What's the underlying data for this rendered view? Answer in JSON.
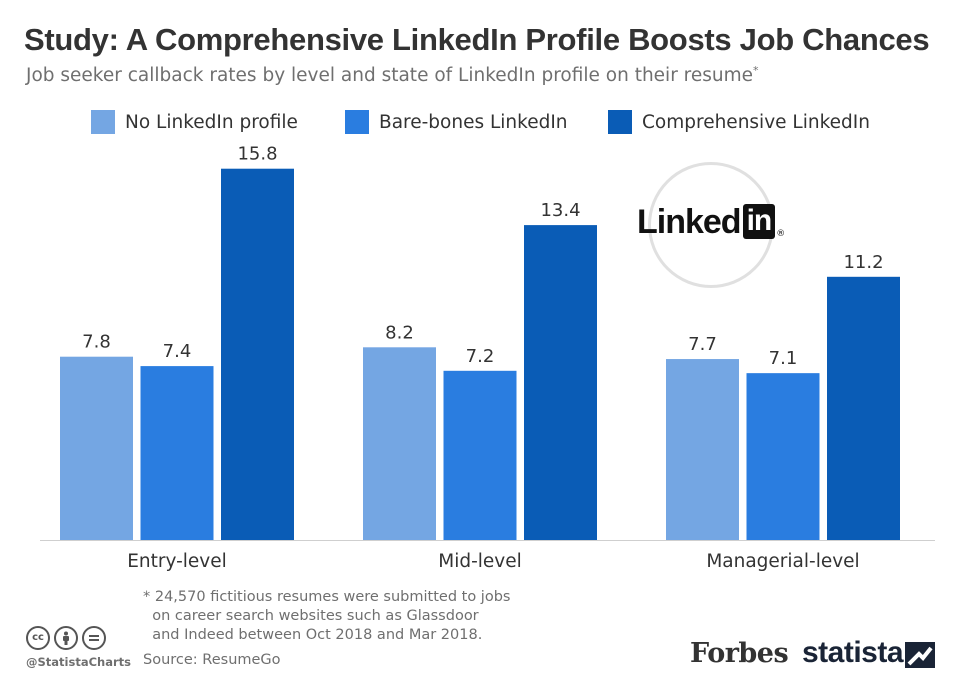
{
  "header": {
    "title": "Study: A Comprehensive LinkedIn Profile Boosts Job Chances",
    "subtitle": "Job seeker callback rates by level and state of LinkedIn profile on their resume",
    "subtitle_marker": "*"
  },
  "logo": {
    "word": "Linked",
    "box": "in",
    "reg": "®"
  },
  "chart_data": {
    "type": "bar",
    "title": "Study: A Comprehensive LinkedIn Profile Boosts Job Chances",
    "subtitle": "Job seeker callback rates by level and state of LinkedIn profile on their resume",
    "categories": [
      "Entry-level",
      "Mid-level",
      "Managerial-level"
    ],
    "series": [
      {
        "name": "No LinkedIn profile",
        "color": "#74a6e3",
        "values": [
          7.8,
          8.2,
          7.7
        ]
      },
      {
        "name": "Bare-bones LinkedIn",
        "color": "#2a7de0",
        "values": [
          7.4,
          7.2,
          7.1
        ]
      },
      {
        "name": "Comprehensive LinkedIn",
        "color": "#0a5cb6",
        "values": [
          15.8,
          13.4,
          11.2
        ]
      }
    ],
    "xlabel": "",
    "ylabel": "",
    "ylim": [
      0,
      17
    ],
    "grid": false,
    "legend": "top"
  },
  "footer": {
    "footnote": "* 24,570 fictitious resumes were submitted to jobs\n  on career search websites such as Glassdoor\n  and Indeed between Oct 2018 and Mar 2018.",
    "source": "Source: ResumeGo",
    "handle": "@StatistaCharts",
    "forbes": "Forbes",
    "statista": "statista",
    "cc_icons": [
      "cc-icon",
      "attribution-icon",
      "no-derivatives-icon"
    ]
  }
}
